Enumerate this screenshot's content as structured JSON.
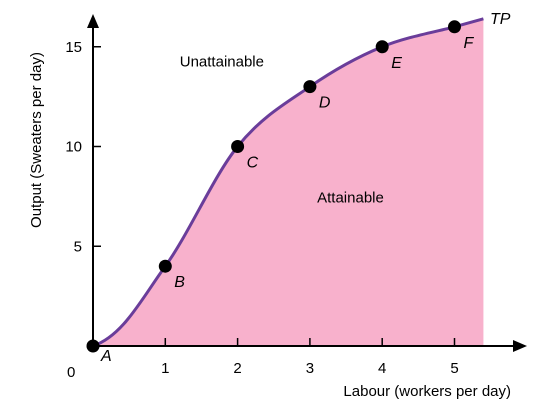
{
  "chart_data": {
    "type": "area",
    "xlabel": "Labour (workers per day)",
    "ylabel": "Output (Sweaters per day)",
    "xlim": [
      0,
      5.4
    ],
    "ylim": [
      0,
      16.5
    ],
    "x_ticks": [
      "1",
      "2",
      "3",
      "4",
      "5"
    ],
    "y_ticks": [
      "5",
      "10",
      "15"
    ],
    "origin_label": "0",
    "grid": false,
    "curve_label": "TP",
    "curve_color": "#6a3d9a",
    "fill_color": "#f8b1cc",
    "points": [
      {
        "label": "A",
        "x": 0,
        "y": 0
      },
      {
        "label": "B",
        "x": 1,
        "y": 4
      },
      {
        "label": "C",
        "x": 2,
        "y": 10
      },
      {
        "label": "D",
        "x": 3,
        "y": 13
      },
      {
        "label": "E",
        "x": 4,
        "y": 15
      },
      {
        "label": "F",
        "x": 5,
        "y": 16
      }
    ],
    "curve_end": {
      "x": 5.4,
      "y": 16.4
    },
    "regions": [
      {
        "label": "Unattainable",
        "x": 1.2,
        "y": 14
      },
      {
        "label": "Attainable",
        "x": 3.1,
        "y": 7.2
      }
    ]
  }
}
